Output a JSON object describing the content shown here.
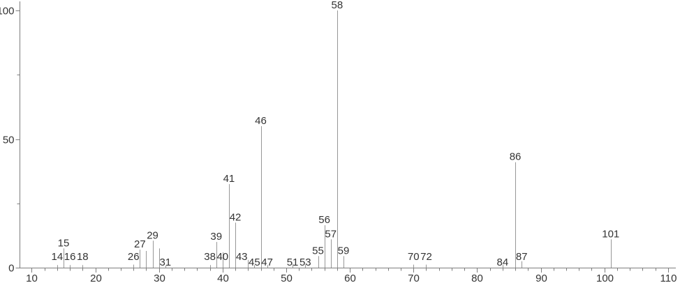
{
  "chart_data": {
    "type": "bar",
    "chart_kind": "mass-spectrum",
    "title": "",
    "xlabel": "",
    "ylabel": "",
    "legend": "none",
    "grid": "off",
    "x_axis": {
      "min": 10,
      "max": 110,
      "major_tick_step": 10,
      "minor_tick_step": 2,
      "major_tick_labels": [
        "10",
        "20",
        "30",
        "40",
        "50",
        "60",
        "70",
        "80",
        "90",
        "100",
        "110"
      ]
    },
    "y_axis": {
      "min": 0,
      "max": 100,
      "major_ticks": [
        0,
        50,
        100
      ],
      "major_tick_labels": [
        "0",
        "50",
        "100"
      ],
      "minor_ticks": [
        25,
        75
      ]
    },
    "peaks": [
      {
        "mz": 14,
        "pct": 1,
        "label": "14",
        "label_pos": "low"
      },
      {
        "mz": 15,
        "pct": 7.5,
        "label": "15",
        "label_pos": "above"
      },
      {
        "mz": 16,
        "pct": 1,
        "label": "16",
        "label_pos": "low"
      },
      {
        "mz": 18,
        "pct": 1,
        "label": "18",
        "label_pos": "low"
      },
      {
        "mz": 26,
        "pct": 1.2,
        "label": "26",
        "label_pos": "low"
      },
      {
        "mz": 27,
        "pct": 7,
        "label": "27",
        "label_pos": "above"
      },
      {
        "mz": 28,
        "pct": 6.5,
        "label": "",
        "label_pos": "none"
      },
      {
        "mz": 29,
        "pct": 10.5,
        "label": "29",
        "label_pos": "above"
      },
      {
        "mz": 30,
        "pct": 7.5,
        "label": "31",
        "label_mz": 31,
        "label_pos": "base"
      },
      {
        "mz": 31,
        "pct": 0.8,
        "label": "",
        "label_pos": "none"
      },
      {
        "mz": 38,
        "pct": 1,
        "label": "38",
        "label_pos": "low"
      },
      {
        "mz": 39,
        "pct": 10,
        "label": "39",
        "label_pos": "above"
      },
      {
        "mz": 40,
        "pct": 6,
        "label": "40",
        "label_pos": "low"
      },
      {
        "mz": 41,
        "pct": 32.5,
        "label": "41",
        "label_pos": "above"
      },
      {
        "mz": 42,
        "pct": 17.5,
        "label": "42",
        "label_pos": "above"
      },
      {
        "mz": 44,
        "pct": 3,
        "label": "43",
        "label_mz": 43,
        "label_pos": "low"
      },
      {
        "mz": 45,
        "pct": 1,
        "label": "45",
        "label_pos": "base"
      },
      {
        "mz": 46,
        "pct": 55,
        "label": "46",
        "label_pos": "above"
      },
      {
        "mz": 47,
        "pct": 1,
        "label": "47",
        "label_pos": "base"
      },
      {
        "mz": 51,
        "pct": 1.5,
        "label": "51",
        "label_pos": "base"
      },
      {
        "mz": 53,
        "pct": 1.2,
        "label": "53",
        "label_pos": "base"
      },
      {
        "mz": 55,
        "pct": 4.5,
        "label": "55",
        "label_pos": "above"
      },
      {
        "mz": 56,
        "pct": 16.5,
        "label": "56",
        "label_pos": "above"
      },
      {
        "mz": 57,
        "pct": 11,
        "label": "57",
        "label_pos": "above"
      },
      {
        "mz": 58,
        "pct": 100,
        "label": "58",
        "label_pos": "above"
      },
      {
        "mz": 59,
        "pct": 4.5,
        "label": "59",
        "label_pos": "above"
      },
      {
        "mz": 70,
        "pct": 1.2,
        "label": "70",
        "label_pos": "low"
      },
      {
        "mz": 72,
        "pct": 1.2,
        "label": "72",
        "label_pos": "low"
      },
      {
        "mz": 84,
        "pct": 1.2,
        "label": "84",
        "label_pos": "base"
      },
      {
        "mz": 86,
        "pct": 41,
        "label": "86",
        "label_pos": "above"
      },
      {
        "mz": 87,
        "pct": 2.5,
        "label": "87",
        "label_pos": "low"
      },
      {
        "mz": 101,
        "pct": 11,
        "label": "101",
        "label_pos": "above"
      }
    ],
    "colors": {
      "background": "#ffffff",
      "peak_line": "#979797",
      "axis_line": "#7d7d7d",
      "tick": "#7d7d7d",
      "text": "#333333"
    }
  }
}
